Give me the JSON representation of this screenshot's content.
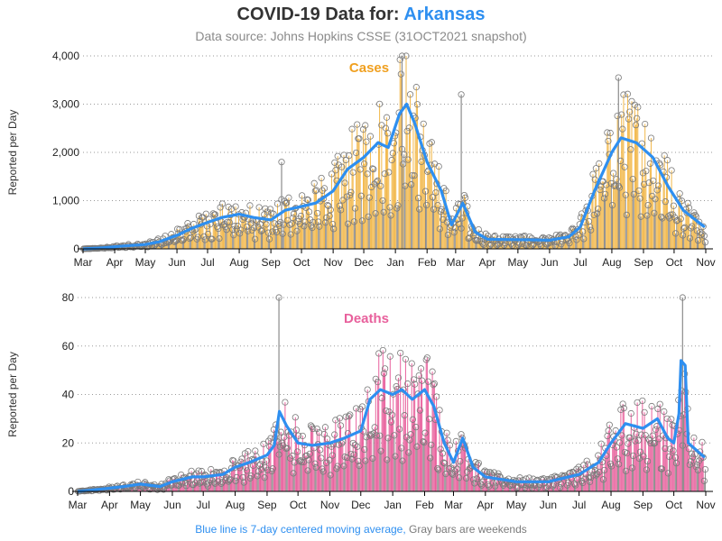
{
  "header": {
    "title_prefix": "COVID-19 Data for:",
    "title_state": "Arkansas",
    "subtitle": "Data source: Johns Hopkins CSSE (31OCT2021 snapshot)"
  },
  "footer": {
    "blue_text": "Blue line is 7-day centered moving average,",
    "gray_text": "Gray bars are weekends"
  },
  "colors": {
    "cases_bar": "#f2b84b",
    "cases_label": "#f0a020",
    "deaths_bar": "#e8609c",
    "deaths_label": "#e8609c",
    "moving_average": "#2e8ff0",
    "weekend_bar": "#8c8c8c",
    "marker": "#7a7a7a",
    "title_state": "#2e8ff0"
  },
  "chart_data": [
    {
      "type": "bar",
      "title": "Cases",
      "ylabel": "Reported per Day",
      "xlabel": "",
      "x_range": [
        "2020-03-01",
        "2021-10-31"
      ],
      "ylim": [
        0,
        4000
      ],
      "y_ticks": [
        "0",
        "1,000",
        "2,000",
        "3,000",
        "4,000"
      ],
      "y_tick_values": [
        0,
        1000,
        2000,
        3000,
        4000
      ],
      "x_ticks": [
        "Mar",
        "Apr",
        "May",
        "Jun",
        "Jul",
        "Aug",
        "Sep",
        "Oct",
        "Nov",
        "Dec",
        "Jan",
        "Feb",
        "Mar",
        "Apr",
        "May",
        "Jun",
        "Jul",
        "Aug",
        "Sep",
        "Oct",
        "Nov"
      ],
      "x_tick_dates": [
        "2020-03-01",
        "2020-04-01",
        "2020-05-01",
        "2020-06-01",
        "2020-07-01",
        "2020-08-01",
        "2020-09-01",
        "2020-10-01",
        "2020-11-01",
        "2020-12-01",
        "2021-01-01",
        "2021-02-01",
        "2021-03-01",
        "2021-04-01",
        "2021-05-01",
        "2021-06-01",
        "2021-07-01",
        "2021-08-01",
        "2021-09-01",
        "2021-10-01",
        "2021-11-01"
      ],
      "grid": "horizontal dotted",
      "series": [
        {
          "name": "7-day centered moving average",
          "approx_points": [
            [
              "2020-03-01",
              0
            ],
            [
              "2020-03-20",
              20
            ],
            [
              "2020-04-10",
              60
            ],
            [
              "2020-05-01",
              90
            ],
            [
              "2020-05-15",
              150
            ],
            [
              "2020-06-01",
              280
            ],
            [
              "2020-06-15",
              420
            ],
            [
              "2020-07-01",
              550
            ],
            [
              "2020-07-15",
              650
            ],
            [
              "2020-08-01",
              720
            ],
            [
              "2020-08-15",
              650
            ],
            [
              "2020-09-01",
              600
            ],
            [
              "2020-09-15",
              800
            ],
            [
              "2020-10-01",
              880
            ],
            [
              "2020-10-15",
              950
            ],
            [
              "2020-11-01",
              1200
            ],
            [
              "2020-11-15",
              1650
            ],
            [
              "2020-12-01",
              1900
            ],
            [
              "2020-12-15",
              2200
            ],
            [
              "2020-12-25",
              2100
            ],
            [
              "2021-01-05",
              2800
            ],
            [
              "2021-01-12",
              3000
            ],
            [
              "2021-01-20",
              2600
            ],
            [
              "2021-02-01",
              1800
            ],
            [
              "2021-02-15",
              1200
            ],
            [
              "2021-02-25",
              500
            ],
            [
              "2021-03-08",
              950
            ],
            [
              "2021-03-20",
              350
            ],
            [
              "2021-04-01",
              200
            ],
            [
              "2021-05-01",
              190
            ],
            [
              "2021-06-01",
              180
            ],
            [
              "2021-06-20",
              250
            ],
            [
              "2021-07-01",
              450
            ],
            [
              "2021-07-15",
              1200
            ],
            [
              "2021-08-01",
              2000
            ],
            [
              "2021-08-10",
              2300
            ],
            [
              "2021-08-25",
              2200
            ],
            [
              "2021-09-10",
              1900
            ],
            [
              "2021-09-25",
              1300
            ],
            [
              "2021-10-10",
              800
            ],
            [
              "2021-10-31",
              450
            ]
          ]
        }
      ],
      "notable_spikes": [
        [
          "2020-09-11",
          1800
        ],
        [
          "2021-01-07",
          4000
        ],
        [
          "2021-03-06",
          3200
        ],
        [
          "2021-08-07",
          3550
        ]
      ]
    },
    {
      "type": "bar",
      "title": "Deaths",
      "ylabel": "Reported per Day",
      "xlabel": "",
      "x_range": [
        "2020-03-01",
        "2021-10-31"
      ],
      "ylim": [
        0,
        80
      ],
      "y_ticks": [
        "0",
        "20",
        "40",
        "60",
        "80"
      ],
      "y_tick_values": [
        0,
        20,
        40,
        60,
        80
      ],
      "x_ticks": [
        "Mar",
        "Apr",
        "May",
        "Jun",
        "Jul",
        "Aug",
        "Sep",
        "Oct",
        "Nov",
        "Dec",
        "Jan",
        "Feb",
        "Mar",
        "Apr",
        "May",
        "Jun",
        "Jul",
        "Aug",
        "Sep",
        "Oct",
        "Nov"
      ],
      "x_tick_dates": [
        "2020-03-01",
        "2020-04-01",
        "2020-05-01",
        "2020-06-01",
        "2020-07-01",
        "2020-08-01",
        "2020-09-01",
        "2020-10-01",
        "2020-11-01",
        "2020-12-01",
        "2021-01-01",
        "2021-02-01",
        "2021-03-01",
        "2021-04-01",
        "2021-05-01",
        "2021-06-01",
        "2021-07-01",
        "2021-08-01",
        "2021-09-01",
        "2021-10-01",
        "2021-11-01"
      ],
      "grid": "horizontal dotted",
      "series": [
        {
          "name": "7-day centered moving average",
          "approx_points": [
            [
              "2020-03-01",
              0
            ],
            [
              "2020-03-25",
              1
            ],
            [
              "2020-04-15",
              2
            ],
            [
              "2020-05-01",
              3
            ],
            [
              "2020-05-20",
              2
            ],
            [
              "2020-06-01",
              4
            ],
            [
              "2020-06-20",
              6
            ],
            [
              "2020-07-01",
              6
            ],
            [
              "2020-07-20",
              7
            ],
            [
              "2020-08-01",
              10
            ],
            [
              "2020-08-15",
              12
            ],
            [
              "2020-09-01",
              15
            ],
            [
              "2020-09-08",
              19
            ],
            [
              "2020-09-13",
              33
            ],
            [
              "2020-09-20",
              27
            ],
            [
              "2020-10-01",
              20
            ],
            [
              "2020-10-15",
              19
            ],
            [
              "2020-11-01",
              20
            ],
            [
              "2020-11-15",
              22
            ],
            [
              "2020-12-01",
              25
            ],
            [
              "2020-12-10",
              38
            ],
            [
              "2020-12-20",
              42
            ],
            [
              "2021-01-01",
              40
            ],
            [
              "2021-01-10",
              42
            ],
            [
              "2021-01-20",
              38
            ],
            [
              "2021-02-01",
              42
            ],
            [
              "2021-02-10",
              35
            ],
            [
              "2021-02-20",
              20
            ],
            [
              "2021-03-01",
              12
            ],
            [
              "2021-03-10",
              22
            ],
            [
              "2021-03-20",
              10
            ],
            [
              "2021-04-01",
              6
            ],
            [
              "2021-05-01",
              4
            ],
            [
              "2021-06-01",
              4
            ],
            [
              "2021-07-01",
              7
            ],
            [
              "2021-07-20",
              12
            ],
            [
              "2021-08-01",
              20
            ],
            [
              "2021-08-15",
              28
            ],
            [
              "2021-09-01",
              26
            ],
            [
              "2021-09-15",
              30
            ],
            [
              "2021-09-25",
              22
            ],
            [
              "2021-10-01",
              20
            ],
            [
              "2021-10-06",
              32
            ],
            [
              "2021-10-08",
              54
            ],
            [
              "2021-10-12",
              52
            ],
            [
              "2021-10-15",
              20
            ],
            [
              "2021-10-31",
              14
            ]
          ]
        }
      ],
      "notable_spikes": [
        [
          "2020-09-12",
          80
        ],
        [
          "2021-10-09",
          80
        ]
      ]
    }
  ]
}
